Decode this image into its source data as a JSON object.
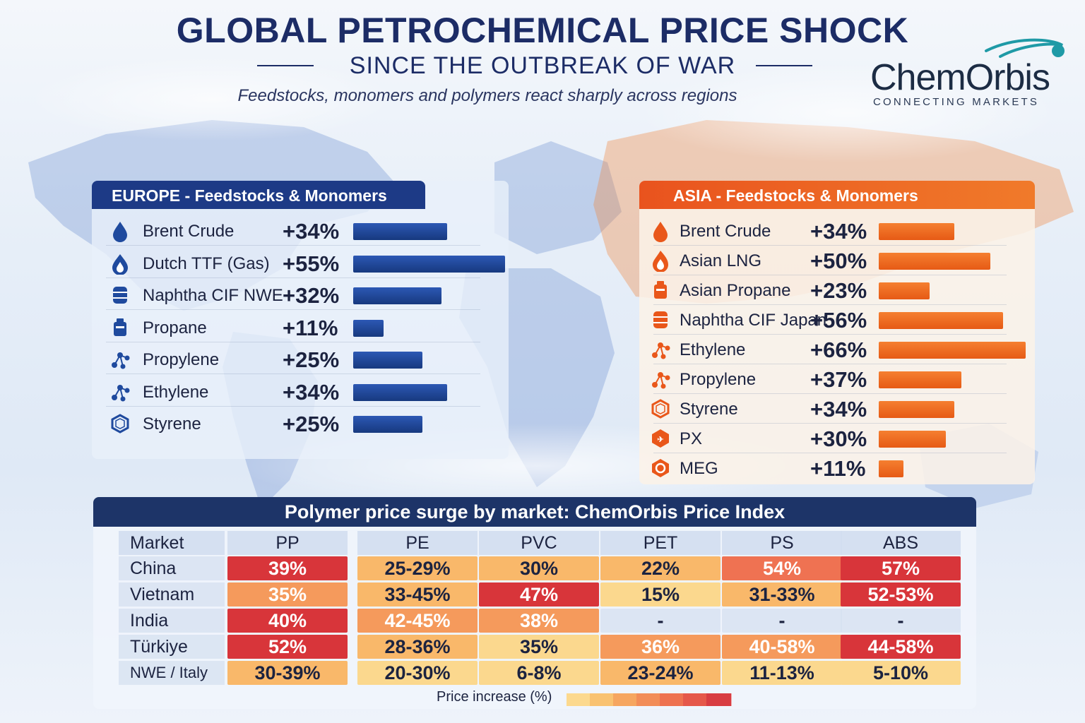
{
  "header": {
    "title": "GLOBAL PETROCHEMICAL PRICE SHOCK",
    "subtitle": "SINCE THE OUTBREAK OF WAR",
    "tagline": "Feedstocks, monomers and polymers react sharply across regions"
  },
  "logo": {
    "name": "ChemOrbis",
    "tagline": "CONNECTING MARKETS"
  },
  "colors": {
    "navy": "#1c2c66",
    "europe_bar": "#1f4a9e",
    "asia_bar": "#ef6a1e",
    "heat_low": "#fbd58e",
    "heat_high": "#d8353a"
  },
  "chart_data": [
    {
      "type": "bar",
      "title": "EUROPE - Feedstocks & Monomers",
      "categories": [
        "Brent Crude",
        "Dutch TTF (Gas)",
        "Naphtha CIF NWE",
        "Propane",
        "Propylene",
        "Ethylene",
        "Styrene"
      ],
      "value_labels": [
        "+34%",
        "+55%",
        "+32%",
        "+11%",
        "+25%",
        "+34%",
        "+25%"
      ],
      "values": [
        34,
        55,
        32,
        11,
        25,
        34,
        25
      ],
      "icons": [
        "oil-drop-icon",
        "gas-flame-icon",
        "barrel-icon",
        "propane-tank-icon",
        "molecule-icon",
        "molecule-icon",
        "benzene-ring-icon"
      ],
      "unit": "%",
      "orientation": "horizontal"
    },
    {
      "type": "bar",
      "title": "ASIA - Feedstocks & Monomers",
      "categories": [
        "Brent Crude",
        "Asian LNG",
        "Asian Propane",
        "Naphtha CIF Japan",
        "Ethylene",
        "Propylene",
        "Styrene",
        "PX",
        "MEG"
      ],
      "value_labels": [
        "+34%",
        "+50%",
        "+23%",
        "+56%",
        "+66%",
        "+37%",
        "+34%",
        "+30%",
        "+11%"
      ],
      "values": [
        34,
        50,
        23,
        56,
        66,
        37,
        34,
        30,
        11
      ],
      "icons": [
        "oil-drop-icon",
        "flame-icon",
        "propane-tank-icon",
        "barrel-icon",
        "molecule-icon",
        "molecule-icon",
        "benzene-ring-icon",
        "px-hexagon-icon",
        "meg-hexagon-icon"
      ],
      "unit": "%",
      "orientation": "horizontal"
    },
    {
      "type": "heatmap",
      "title": "Polymer price surge by market: ChemOrbis Price Index",
      "corner_label": "Market",
      "columns": [
        "PP",
        "PE",
        "PVC",
        "PET",
        "PS",
        "ABS"
      ],
      "rows": [
        {
          "market": "China",
          "cells": [
            "39%",
            "25-29%",
            "30%",
            "22%",
            "54%",
            "57%"
          ],
          "levels": [
            5,
            2,
            2,
            2,
            4,
            5
          ]
        },
        {
          "market": "Vietnam",
          "cells": [
            "35%",
            "33-45%",
            "47%",
            "15%",
            "31-33%",
            "52-53%"
          ],
          "levels": [
            3,
            2,
            5,
            1,
            2,
            5
          ]
        },
        {
          "market": "India",
          "cells": [
            "40%",
            "42-45%",
            "38%",
            "-",
            "-",
            "-"
          ],
          "levels": [
            5,
            3,
            3,
            0,
            0,
            0
          ]
        },
        {
          "market": "Türkiye",
          "cells": [
            "52%",
            "28-36%",
            "35%",
            "36%",
            "40-58%",
            "44-58%"
          ],
          "levels": [
            5,
            2,
            1,
            3,
            3,
            5
          ]
        },
        {
          "market": "NWE / Italy",
          "cells": [
            "30-39%",
            "20-30%",
            "6-8%",
            "23-24%",
            "11-13%",
            "5-10%"
          ],
          "levels": [
            2,
            1,
            1,
            2,
            1,
            1
          ]
        }
      ],
      "legend_label": "Price increase (%)"
    }
  ]
}
